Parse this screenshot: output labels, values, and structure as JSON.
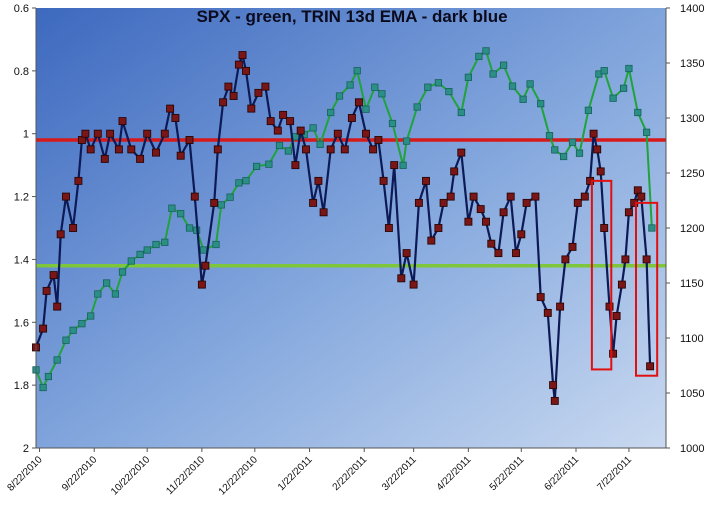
{
  "chart_data": {
    "type": "line",
    "title": "SPX - green, TRIN 13d EMA - dark blue",
    "x_tick_labels": [
      "8/22/2010",
      "9/22/2010",
      "10/22/2010",
      "11/22/2010",
      "12/22/2010",
      "1/22/2011",
      "2/22/2011",
      "3/22/2011",
      "4/22/2011",
      "5/22/2011",
      "6/22/2011",
      "7/22/2011"
    ],
    "y_left": {
      "label": "",
      "ylim": [
        0.6,
        2.0
      ],
      "inverted": true,
      "ticks": [
        "0.6",
        "0.8",
        "1",
        "1.2",
        "1.4",
        "1.6",
        "1.8",
        "2"
      ]
    },
    "y_right": {
      "label": "",
      "ylim": [
        1000,
        1400
      ],
      "ticks": [
        "1000",
        "1050",
        "1100",
        "1150",
        "1200",
        "1250",
        "1300",
        "1350",
        "1400"
      ]
    },
    "grid": false,
    "legend": "none",
    "reference_lines": [
      {
        "axis": "left",
        "value": 1.02,
        "color": "#d61a1a"
      },
      {
        "axis": "left",
        "value": 1.42,
        "color": "#7ec63a"
      }
    ],
    "highlight_boxes": [
      {
        "x_from": "2011-07-01",
        "x_to": "2011-07-12",
        "y_from": 1.15,
        "y_to": 1.75
      },
      {
        "x_from": "2011-07-26",
        "x_to": "2011-08-07",
        "y_from": 1.22,
        "y_to": 1.77
      }
    ],
    "series": [
      {
        "name": "SPX",
        "axis": "right",
        "color": "#1fa33a",
        "points": [
          [
            "2010-08-20",
            1071
          ],
          [
            "2010-08-24",
            1055
          ],
          [
            "2010-08-27",
            1065
          ],
          [
            "2010-09-01",
            1080
          ],
          [
            "2010-09-06",
            1098
          ],
          [
            "2010-09-10",
            1107
          ],
          [
            "2010-09-15",
            1113
          ],
          [
            "2010-09-20",
            1120
          ],
          [
            "2010-09-24",
            1140
          ],
          [
            "2010-09-29",
            1150
          ],
          [
            "2010-10-04",
            1140
          ],
          [
            "2010-10-08",
            1160
          ],
          [
            "2010-10-13",
            1170
          ],
          [
            "2010-10-18",
            1176
          ],
          [
            "2010-10-22",
            1180
          ],
          [
            "2010-10-27",
            1185
          ],
          [
            "2010-11-01",
            1187
          ],
          [
            "2010-11-05",
            1218
          ],
          [
            "2010-11-10",
            1213
          ],
          [
            "2010-11-15",
            1200
          ],
          [
            "2010-11-19",
            1198
          ],
          [
            "2010-11-23",
            1180
          ],
          [
            "2010-11-30",
            1185
          ],
          [
            "2010-12-03",
            1221
          ],
          [
            "2010-12-08",
            1228
          ],
          [
            "2010-12-13",
            1241
          ],
          [
            "2010-12-17",
            1243
          ],
          [
            "2010-12-23",
            1256
          ],
          [
            "2010-12-30",
            1258
          ],
          [
            "2011-01-05",
            1275
          ],
          [
            "2011-01-10",
            1270
          ],
          [
            "2011-01-14",
            1283
          ],
          [
            "2011-01-19",
            1285
          ],
          [
            "2011-01-24",
            1291
          ],
          [
            "2011-01-28",
            1276
          ],
          [
            "2011-02-03",
            1305
          ],
          [
            "2011-02-08",
            1320
          ],
          [
            "2011-02-14",
            1330
          ],
          [
            "2011-02-18",
            1343
          ],
          [
            "2011-02-23",
            1308
          ],
          [
            "2011-02-28",
            1328
          ],
          [
            "2011-03-04",
            1322
          ],
          [
            "2011-03-10",
            1295
          ],
          [
            "2011-03-16",
            1257
          ],
          [
            "2011-03-18",
            1279
          ],
          [
            "2011-03-24",
            1310
          ],
          [
            "2011-03-30",
            1328
          ],
          [
            "2011-04-05",
            1332
          ],
          [
            "2011-04-11",
            1324
          ],
          [
            "2011-04-18",
            1305
          ],
          [
            "2011-04-22",
            1337
          ],
          [
            "2011-04-28",
            1356
          ],
          [
            "2011-05-02",
            1361
          ],
          [
            "2011-05-06",
            1340
          ],
          [
            "2011-05-12",
            1348
          ],
          [
            "2011-05-17",
            1329
          ],
          [
            "2011-05-23",
            1317
          ],
          [
            "2011-05-27",
            1331
          ],
          [
            "2011-06-02",
            1313
          ],
          [
            "2011-06-07",
            1284
          ],
          [
            "2011-06-10",
            1271
          ],
          [
            "2011-06-15",
            1265
          ],
          [
            "2011-06-20",
            1278
          ],
          [
            "2011-06-24",
            1268
          ],
          [
            "2011-06-29",
            1307
          ],
          [
            "2011-07-05",
            1340
          ],
          [
            "2011-07-08",
            1343
          ],
          [
            "2011-07-13",
            1318
          ],
          [
            "2011-07-19",
            1327
          ],
          [
            "2011-07-22",
            1345
          ],
          [
            "2011-07-27",
            1305
          ],
          [
            "2011-08-01",
            1287
          ],
          [
            "2011-08-04",
            1200
          ]
        ]
      },
      {
        "name": "TRIN 13d EMA",
        "axis": "left",
        "color": "#0d1a55",
        "points": [
          [
            "2010-08-20",
            1.68
          ],
          [
            "2010-08-24",
            1.62
          ],
          [
            "2010-08-26",
            1.5
          ],
          [
            "2010-08-30",
            1.45
          ],
          [
            "2010-09-01",
            1.55
          ],
          [
            "2010-09-03",
            1.32
          ],
          [
            "2010-09-06",
            1.2
          ],
          [
            "2010-09-10",
            1.3
          ],
          [
            "2010-09-13",
            1.15
          ],
          [
            "2010-09-15",
            1.02
          ],
          [
            "2010-09-17",
            1.0
          ],
          [
            "2010-09-20",
            1.05
          ],
          [
            "2010-09-24",
            1.0
          ],
          [
            "2010-09-28",
            1.08
          ],
          [
            "2010-10-01",
            1.0
          ],
          [
            "2010-10-06",
            1.05
          ],
          [
            "2010-10-08",
            0.96
          ],
          [
            "2010-10-13",
            1.05
          ],
          [
            "2010-10-18",
            1.08
          ],
          [
            "2010-10-22",
            1.0
          ],
          [
            "2010-10-27",
            1.06
          ],
          [
            "2010-11-01",
            1.0
          ],
          [
            "2010-11-04",
            0.92
          ],
          [
            "2010-11-07",
            0.95
          ],
          [
            "2010-11-10",
            1.07
          ],
          [
            "2010-11-15",
            1.02
          ],
          [
            "2010-11-18",
            1.2
          ],
          [
            "2010-11-22",
            1.48
          ],
          [
            "2010-11-24",
            1.42
          ],
          [
            "2010-11-29",
            1.22
          ],
          [
            "2010-12-01",
            1.05
          ],
          [
            "2010-12-04",
            0.9
          ],
          [
            "2010-12-07",
            0.85
          ],
          [
            "2010-12-10",
            0.88
          ],
          [
            "2010-12-13",
            0.78
          ],
          [
            "2010-12-15",
            0.75
          ],
          [
            "2010-12-17",
            0.8
          ],
          [
            "2010-12-20",
            0.92
          ],
          [
            "2010-12-24",
            0.87
          ],
          [
            "2010-12-28",
            0.85
          ],
          [
            "2010-12-31",
            0.96
          ],
          [
            "2011-01-04",
            0.99
          ],
          [
            "2011-01-07",
            0.94
          ],
          [
            "2011-01-11",
            0.96
          ],
          [
            "2011-01-14",
            1.1
          ],
          [
            "2011-01-17",
            0.99
          ],
          [
            "2011-01-20",
            1.05
          ],
          [
            "2011-01-24",
            1.22
          ],
          [
            "2011-01-27",
            1.15
          ],
          [
            "2011-01-30",
            1.25
          ],
          [
            "2011-02-03",
            1.05
          ],
          [
            "2011-02-07",
            1.0
          ],
          [
            "2011-02-11",
            1.05
          ],
          [
            "2011-02-15",
            0.95
          ],
          [
            "2011-02-19",
            0.9
          ],
          [
            "2011-02-23",
            1.0
          ],
          [
            "2011-02-27",
            1.05
          ],
          [
            "2011-03-02",
            1.02
          ],
          [
            "2011-03-05",
            1.15
          ],
          [
            "2011-03-08",
            1.3
          ],
          [
            "2011-03-11",
            1.1
          ],
          [
            "2011-03-15",
            1.46
          ],
          [
            "2011-03-18",
            1.38
          ],
          [
            "2011-03-22",
            1.48
          ],
          [
            "2011-03-25",
            1.22
          ],
          [
            "2011-03-29",
            1.15
          ],
          [
            "2011-04-01",
            1.34
          ],
          [
            "2011-04-05",
            1.3
          ],
          [
            "2011-04-08",
            1.22
          ],
          [
            "2011-04-12",
            1.2
          ],
          [
            "2011-04-14",
            1.12
          ],
          [
            "2011-04-18",
            1.06
          ],
          [
            "2011-04-22",
            1.28
          ],
          [
            "2011-04-25",
            1.2
          ],
          [
            "2011-04-29",
            1.24
          ],
          [
            "2011-05-02",
            1.28
          ],
          [
            "2011-05-05",
            1.35
          ],
          [
            "2011-05-09",
            1.38
          ],
          [
            "2011-05-12",
            1.25
          ],
          [
            "2011-05-16",
            1.2
          ],
          [
            "2011-05-19",
            1.38
          ],
          [
            "2011-05-22",
            1.32
          ],
          [
            "2011-05-25",
            1.22
          ],
          [
            "2011-05-30",
            1.2
          ],
          [
            "2011-06-02",
            1.52
          ],
          [
            "2011-06-06",
            1.57
          ],
          [
            "2011-06-09",
            1.8
          ],
          [
            "2011-06-10",
            1.85
          ],
          [
            "2011-06-13",
            1.55
          ],
          [
            "2011-06-16",
            1.4
          ],
          [
            "2011-06-20",
            1.36
          ],
          [
            "2011-06-23",
            1.22
          ],
          [
            "2011-06-27",
            1.2
          ],
          [
            "2011-06-30",
            1.15
          ],
          [
            "2011-07-02",
            1.0
          ],
          [
            "2011-07-04",
            1.05
          ],
          [
            "2011-07-06",
            1.12
          ],
          [
            "2011-07-08",
            1.3
          ],
          [
            "2011-07-11",
            1.55
          ],
          [
            "2011-07-13",
            1.7
          ],
          [
            "2011-07-15",
            1.58
          ],
          [
            "2011-07-18",
            1.48
          ],
          [
            "2011-07-20",
            1.4
          ],
          [
            "2011-07-22",
            1.25
          ],
          [
            "2011-07-25",
            1.22
          ],
          [
            "2011-07-27",
            1.18
          ],
          [
            "2011-07-29",
            1.2
          ],
          [
            "2011-08-01",
            1.4
          ],
          [
            "2011-08-03",
            1.74
          ]
        ]
      }
    ]
  }
}
